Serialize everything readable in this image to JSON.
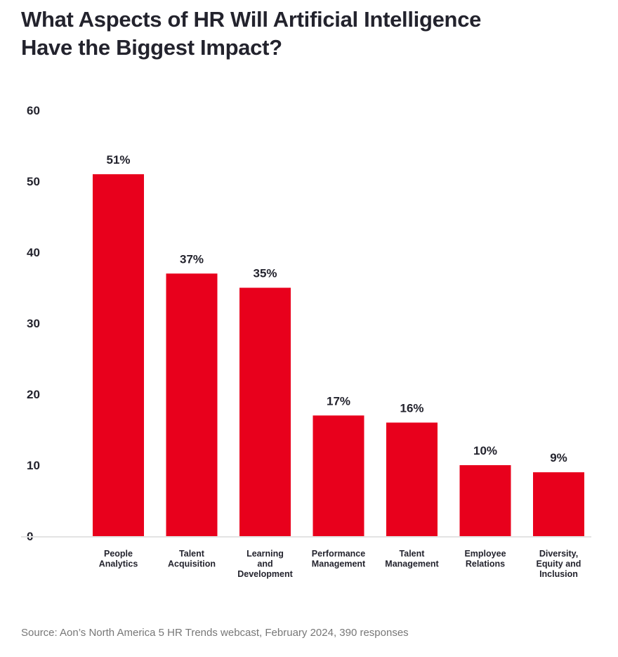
{
  "chart_data": {
    "type": "bar",
    "title": "What Aspects of HR Will Artificial Intelligence Have the Biggest Impact?",
    "categories": [
      "People Analytics",
      "Talent Acquisition",
      "Learning and Development",
      "Performance Management",
      "Talent Management",
      "Employee Relations",
      "Diversity, Equity and Inclusion"
    ],
    "category_lines": [
      [
        "People",
        "Analytics"
      ],
      [
        "Talent",
        "Acquisition"
      ],
      [
        "Learning",
        "and",
        "Development"
      ],
      [
        "Performance",
        "Management"
      ],
      [
        "Talent",
        "Management"
      ],
      [
        "Employee",
        "Relations"
      ],
      [
        "Diversity,",
        "Equity and",
        "Inclusion"
      ]
    ],
    "values": [
      51,
      37,
      35,
      17,
      16,
      10,
      9
    ],
    "data_labels": [
      "51%",
      "37%",
      "35%",
      "17%",
      "16%",
      "10%",
      "9%"
    ],
    "yticks": [
      0,
      10,
      20,
      30,
      40,
      50,
      60
    ],
    "ylim": [
      0,
      60
    ],
    "xlabel": "",
    "ylabel": "",
    "grid": false,
    "bar_color": "#e8001c",
    "source": "Source: Aon’s North America 5 HR Trends webcast, February 2024, 390 responses"
  }
}
